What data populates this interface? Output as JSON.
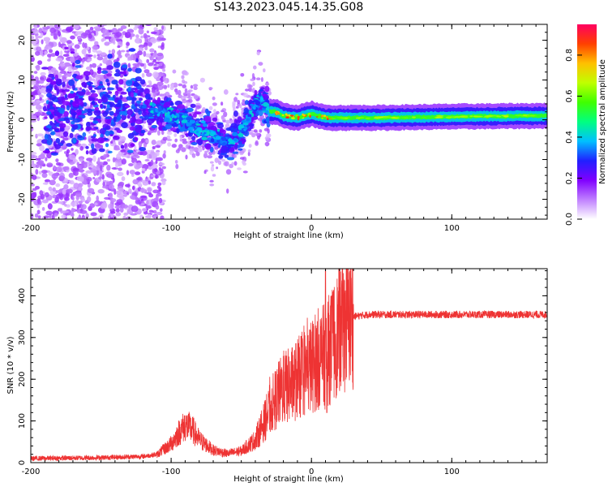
{
  "figure": {
    "title": "S143.2023.045.14.35.G08"
  },
  "chart_data": [
    {
      "type": "heatmap",
      "name": "spectrogram",
      "xlabel": "Height of straight line (km)",
      "ylabel": "Frequency (Hz)",
      "xlim": [
        -200,
        168
      ],
      "ylim": [
        -25,
        24
      ],
      "x_ticks": [
        -200,
        -100,
        0,
        100
      ],
      "y_ticks": [
        -20,
        -10,
        0,
        10,
        20
      ],
      "colorbar": {
        "label": "Normalized spectral amplitude",
        "range": [
          0,
          0.95
        ],
        "ticks": [
          0.0,
          0.2,
          0.4,
          0.6,
          0.8
        ],
        "tick_labels": [
          "0.0",
          "0.2",
          "0.4",
          "0.6",
          "0.8"
        ],
        "colormap": [
          "#ffffff",
          "#c080ff",
          "#8000ff",
          "#2020ff",
          "#00c0ff",
          "#00ff80",
          "#40ff00",
          "#c0ff00",
          "#ffc000",
          "#ff4000",
          "#ff0060"
        ]
      },
      "ridge": {
        "x": [
          -120,
          -110,
          -100,
          -90,
          -80,
          -70,
          -60,
          -50,
          -40,
          -35,
          -30,
          -25,
          -20,
          -10,
          0,
          10,
          50,
          100,
          168
        ],
        "y": [
          3,
          2,
          1,
          0,
          -2,
          -4,
          -6,
          -3,
          4,
          5,
          2,
          2,
          1,
          0.5,
          1.5,
          0.5,
          0.5,
          0.8,
          1
        ]
      }
    },
    {
      "type": "line",
      "name": "snr",
      "xlabel": "Height of straight line (km)",
      "ylabel": "SNR (10 * v/v)",
      "xlim": [
        -200,
        168
      ],
      "ylim": [
        0,
        465
      ],
      "x_ticks": [
        -200,
        -100,
        0,
        100
      ],
      "y_ticks": [
        0,
        100,
        200,
        300,
        400
      ],
      "color": "#ee3333",
      "envelope": {
        "x": [
          -200,
          -150,
          -120,
          -110,
          -100,
          -95,
          -90,
          -85,
          -80,
          -70,
          -60,
          -50,
          -40,
          -32,
          -28,
          -25,
          -22,
          -20,
          -15,
          -10,
          -5,
          0,
          5,
          10,
          15,
          20,
          25,
          30,
          40,
          60,
          100,
          168
        ],
        "y": [
          10,
          12,
          15,
          20,
          45,
          70,
          90,
          80,
          55,
          30,
          22,
          28,
          55,
          110,
          140,
          155,
          170,
          180,
          185,
          200,
          215,
          230,
          250,
          255,
          285,
          320,
          340,
          350,
          355,
          355,
          355,
          355
        ]
      }
    }
  ]
}
